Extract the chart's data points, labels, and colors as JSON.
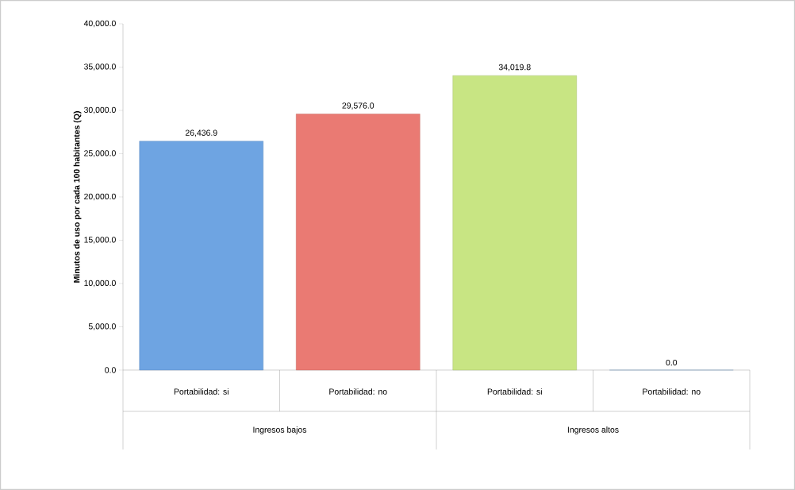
{
  "chart_data": {
    "type": "bar",
    "ylabel": "Minutos de uso por cada 100 habitantes (Q)",
    "categories": [
      "Portabilidad: si",
      "Portabilidad: no",
      "Portabilidad: si",
      "Portabilidad: no"
    ],
    "values": [
      26436.9,
      29576.0,
      34019.8,
      0.0
    ],
    "value_labels": [
      "26,436.9",
      "29,576.0",
      "34,019.8",
      "0.0"
    ],
    "colors": [
      "#6ea4e2",
      "#ea7a73",
      "#c8e583",
      "#9fc7f0"
    ],
    "annotations": [
      "Ingresos bajos",
      "Ingresos altos"
    ],
    "ylim": [
      0,
      40000
    ],
    "yticks": [
      {
        "value": 0,
        "label": "0.0"
      },
      {
        "value": 5000,
        "label": "5,000.0"
      },
      {
        "value": 10000,
        "label": "10,000.0"
      },
      {
        "value": 15000,
        "label": "15,000.0"
      },
      {
        "value": 20000,
        "label": "20,000.0"
      },
      {
        "value": 25000,
        "label": "25,000.0"
      },
      {
        "value": 30000,
        "label": "30,000.0"
      },
      {
        "value": 35000,
        "label": "35,000.0"
      },
      {
        "value": 40000,
        "label": "40,000.0"
      }
    ]
  }
}
